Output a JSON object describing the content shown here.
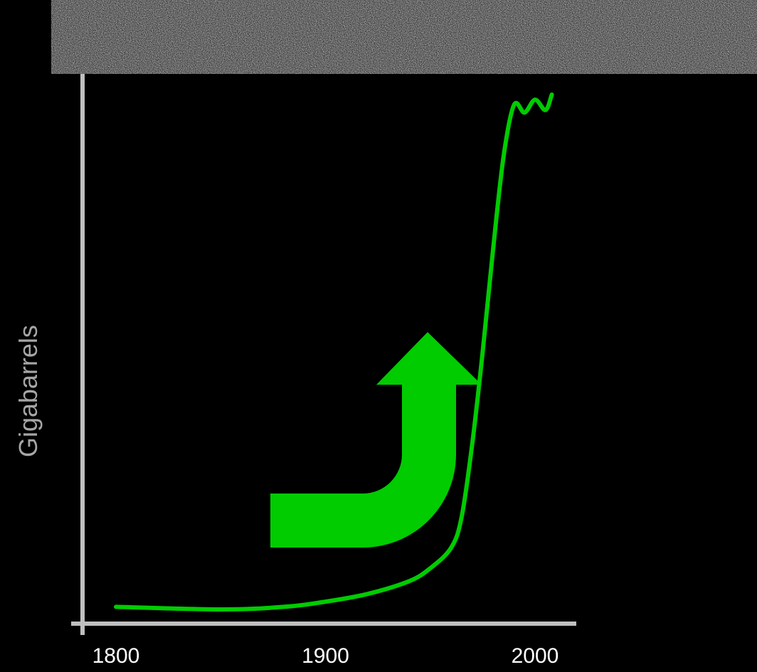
{
  "colors": {
    "background": "#000000",
    "axis": "#bfbfbf",
    "series": "#00cc00",
    "arrow": "#00cc00",
    "tick_text": "#ffffff",
    "axis_title_text": "#a6a6a6",
    "noise_banner": "#9a9a9a"
  },
  "decorations": {
    "noise_banner": "textured-gray-banner",
    "up-arrow": "bent-up-arrow-icon"
  },
  "chart_data": {
    "type": "line",
    "title": "",
    "xlabel": "",
    "ylabel": "Gigabarrels",
    "xlim": [
      1800,
      2000
    ],
    "ylim": [
      0,
      1
    ],
    "x_ticks": [
      "1800",
      "1900",
      "2000"
    ],
    "grid": false,
    "legend": "none",
    "series": [
      {
        "x": [
          1800,
          1850,
          1880,
          1900,
          1920,
          1940,
          1950,
          1960,
          1965,
          1970,
          1975,
          1980,
          1985,
          1990,
          1995,
          2000,
          2005,
          2008
        ],
        "y": [
          0.005,
          0.0,
          0.005,
          0.015,
          0.03,
          0.055,
          0.08,
          0.12,
          0.18,
          0.32,
          0.5,
          0.7,
          0.88,
          0.98,
          0.965,
          0.99,
          0.97,
          1.0
        ]
      }
    ]
  }
}
